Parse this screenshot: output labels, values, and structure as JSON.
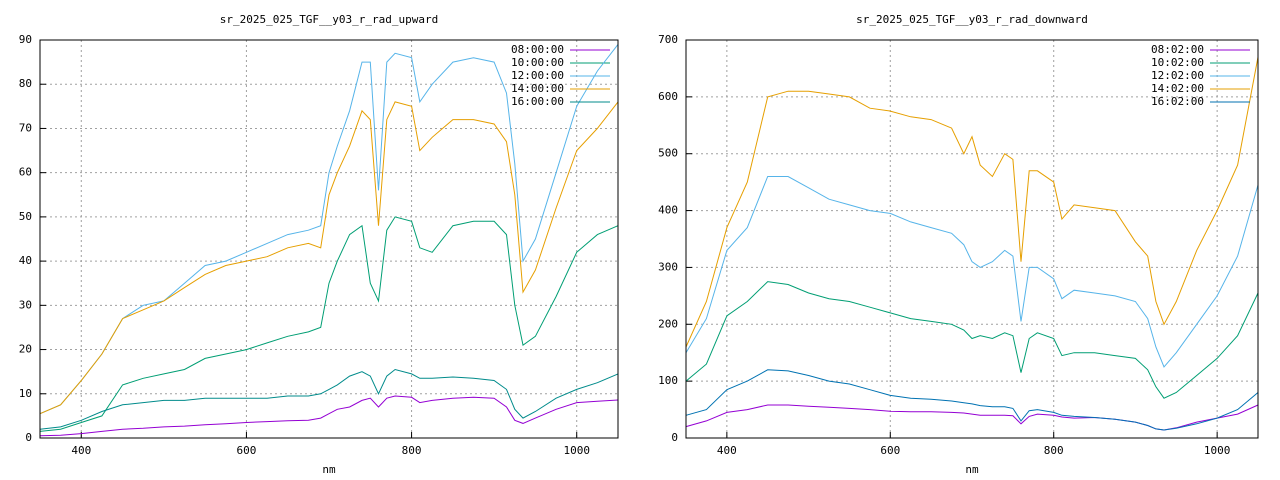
{
  "chart_data": [
    {
      "type": "line",
      "title": "sr_2025_025_TGF__y03_r_rad_upward",
      "xlabel": "nm",
      "x": [
        350,
        375,
        400,
        425,
        450,
        475,
        500,
        525,
        550,
        575,
        600,
        625,
        650,
        675,
        690,
        700,
        710,
        725,
        740,
        750,
        760,
        770,
        780,
        800,
        810,
        825,
        850,
        875,
        900,
        915,
        925,
        935,
        950,
        975,
        1000,
        1025,
        1050
      ],
      "xlim": [
        350,
        1050
      ],
      "xticks": [
        400,
        600,
        800,
        1000
      ],
      "ylim": [
        0,
        90
      ],
      "yticks": [
        0,
        10,
        20,
        30,
        40,
        50,
        60,
        70,
        80,
        90
      ],
      "grid": true,
      "legend": "top-right",
      "series": [
        {
          "name": "08:00:00",
          "color": "#9400d3",
          "values": [
            0.5,
            0.6,
            1,
            1.5,
            2,
            2.2,
            2.5,
            2.7,
            3,
            3.2,
            3.5,
            3.7,
            3.9,
            4,
            4.5,
            5.5,
            6.5,
            7,
            8.5,
            9,
            7,
            9,
            9.5,
            9.2,
            8,
            8.5,
            9,
            9.2,
            9,
            7,
            4,
            3.3,
            4.5,
            6.5,
            8,
            8.3,
            8.6
          ]
        },
        {
          "name": "10:00:00",
          "color": "#009e73",
          "values": [
            1.5,
            2,
            3.5,
            5,
            12,
            13.5,
            14.5,
            15.5,
            18,
            19,
            20,
            21.5,
            23,
            24,
            25,
            35,
            40,
            46,
            48,
            35,
            31,
            47,
            50,
            49,
            43,
            42,
            48,
            49,
            49,
            46,
            30,
            21,
            23,
            32,
            42,
            46,
            48
          ]
        },
        {
          "name": "12:00:00",
          "color": "#56b4e9",
          "values": [
            5.5,
            7.5,
            13,
            19,
            27,
            30,
            31,
            35,
            39,
            40,
            42,
            44,
            46,
            47,
            48,
            60,
            66,
            74,
            85,
            85,
            56,
            85,
            87,
            86,
            76,
            80,
            85,
            86,
            85,
            78,
            62,
            40,
            45,
            60,
            75,
            83,
            89
          ]
        },
        {
          "name": "14:00:00",
          "color": "#e69f00",
          "values": [
            5.5,
            7.5,
            13,
            19,
            27,
            29,
            31,
            34,
            37,
            39,
            40,
            41,
            43,
            44,
            43,
            55,
            60,
            66,
            74,
            72,
            48,
            72,
            76,
            75,
            65,
            68,
            72,
            72,
            71,
            67,
            55,
            33,
            38,
            52,
            65,
            70,
            76
          ]
        },
        {
          "name": "16:00:00",
          "color": "#008b8b",
          "values": [
            2,
            2.5,
            4,
            6,
            7.5,
            8,
            8.5,
            8.5,
            9,
            9,
            9,
            9,
            9.5,
            9.5,
            10,
            11,
            12,
            14,
            15,
            14,
            10,
            14,
            15.5,
            14.5,
            13.5,
            13.5,
            13.8,
            13.5,
            13,
            11,
            6.5,
            4.5,
            6,
            9,
            11,
            12.5,
            14.5
          ]
        }
      ]
    },
    {
      "type": "line",
      "title": "sr_2025_025_TGF__y03_r_rad_downward",
      "xlabel": "nm",
      "x": [
        350,
        375,
        400,
        425,
        450,
        475,
        500,
        525,
        550,
        575,
        600,
        625,
        650,
        675,
        690,
        700,
        710,
        725,
        740,
        750,
        760,
        770,
        780,
        800,
        810,
        825,
        850,
        875,
        900,
        915,
        925,
        935,
        950,
        975,
        1000,
        1025,
        1050
      ],
      "xlim": [
        350,
        1050
      ],
      "xticks": [
        400,
        600,
        800,
        1000
      ],
      "ylim": [
        0,
        700
      ],
      "yticks": [
        0,
        100,
        200,
        300,
        400,
        500,
        600,
        700
      ],
      "grid": true,
      "legend": "top-right",
      "series": [
        {
          "name": "08:02:00",
          "color": "#9400d3",
          "values": [
            20,
            30,
            45,
            50,
            58,
            58,
            56,
            54,
            52,
            50,
            47,
            46,
            46,
            45,
            44,
            42,
            40,
            40,
            40,
            39,
            25,
            38,
            42,
            40,
            37,
            35,
            36,
            33,
            28,
            22,
            16,
            14,
            18,
            28,
            35,
            42,
            58
          ]
        },
        {
          "name": "10:02:00",
          "color": "#009e73",
          "values": [
            100,
            130,
            215,
            240,
            275,
            270,
            255,
            245,
            240,
            230,
            220,
            210,
            205,
            200,
            190,
            175,
            180,
            175,
            185,
            180,
            115,
            175,
            185,
            175,
            145,
            150,
            150,
            145,
            140,
            120,
            90,
            70,
            80,
            110,
            140,
            180,
            255
          ]
        },
        {
          "name": "12:02:00",
          "color": "#56b4e9",
          "values": [
            150,
            210,
            330,
            370,
            460,
            460,
            440,
            420,
            410,
            400,
            395,
            380,
            370,
            360,
            340,
            310,
            300,
            310,
            330,
            320,
            205,
            300,
            300,
            280,
            245,
            260,
            255,
            250,
            240,
            210,
            160,
            125,
            150,
            200,
            250,
            320,
            445
          ]
        },
        {
          "name": "14:02:00",
          "color": "#e69f00",
          "values": [
            160,
            240,
            370,
            450,
            600,
            610,
            610,
            605,
            600,
            580,
            575,
            565,
            560,
            545,
            500,
            530,
            480,
            460,
            500,
            490,
            310,
            470,
            470,
            450,
            385,
            410,
            405,
            400,
            345,
            320,
            240,
            200,
            240,
            330,
            400,
            480,
            670
          ]
        },
        {
          "name": "16:02:00",
          "color": "#0072b2",
          "values": [
            40,
            50,
            85,
            100,
            120,
            118,
            110,
            100,
            95,
            85,
            75,
            70,
            68,
            65,
            62,
            60,
            57,
            55,
            55,
            52,
            30,
            48,
            50,
            45,
            40,
            38,
            36,
            33,
            28,
            22,
            16,
            14,
            17,
            25,
            35,
            50,
            80
          ]
        }
      ]
    }
  ]
}
